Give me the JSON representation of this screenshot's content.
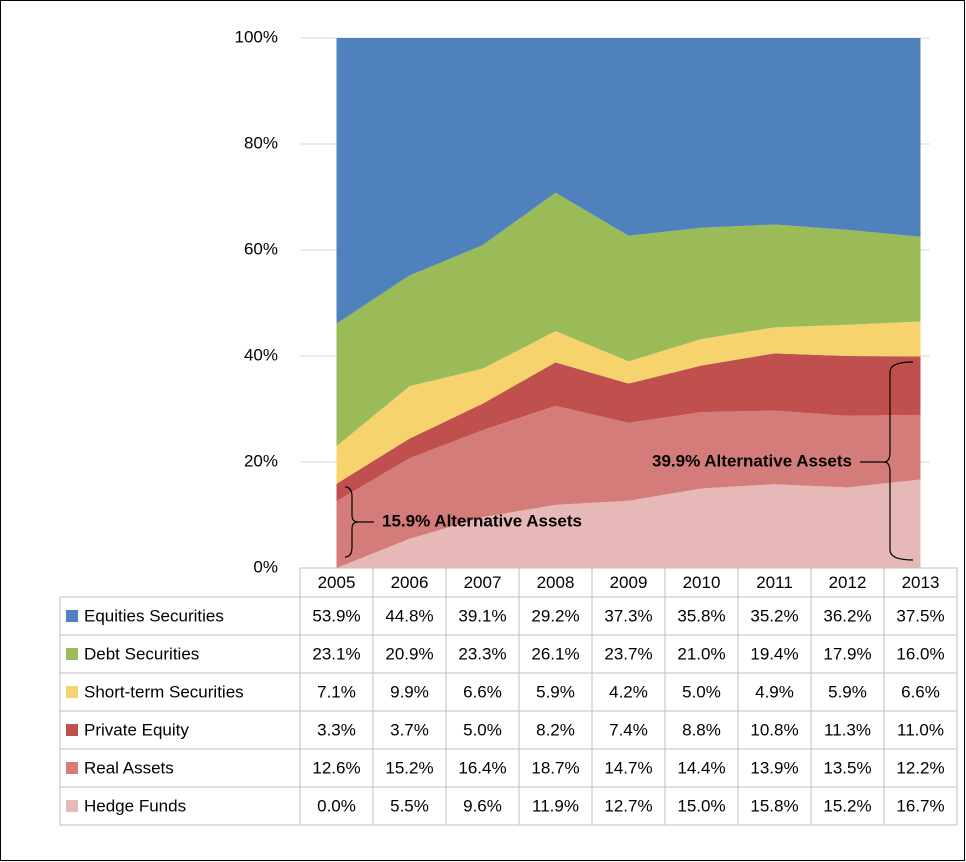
{
  "chart_data": {
    "type": "stacked_area",
    "categories": [
      "2005",
      "2006",
      "2007",
      "2008",
      "2009",
      "2010",
      "2011",
      "2012",
      "2013"
    ],
    "series": [
      {
        "name": "Equities Securities",
        "color": "#4f81bd",
        "values": [
          53.9,
          44.8,
          39.1,
          29.2,
          37.3,
          35.8,
          35.2,
          36.2,
          37.5
        ],
        "value_labels": [
          "53.9%",
          "44.8%",
          "39.1%",
          "29.2%",
          "37.3%",
          "35.8%",
          "35.2%",
          "36.2%",
          "37.5%"
        ]
      },
      {
        "name": "Debt Securities",
        "color": "#9bbb59",
        "values": [
          23.1,
          20.9,
          23.3,
          26.1,
          23.7,
          21.0,
          19.4,
          17.9,
          16.0
        ],
        "value_labels": [
          "23.1%",
          "20.9%",
          "23.3%",
          "26.1%",
          "23.7%",
          "21.0%",
          "19.4%",
          "17.9%",
          "16.0%"
        ]
      },
      {
        "name": "Short-term Securities",
        "color": "#f7d36e",
        "values": [
          7.1,
          9.9,
          6.6,
          5.9,
          4.2,
          5.0,
          4.9,
          5.9,
          6.6
        ],
        "value_labels": [
          "7.1%",
          "9.9%",
          "6.6%",
          "5.9%",
          "4.2%",
          "5.0%",
          "4.9%",
          "5.9%",
          "6.6%"
        ]
      },
      {
        "name": "Private Equity",
        "color": "#c0504d",
        "values": [
          3.3,
          3.7,
          5.0,
          8.2,
          7.4,
          8.8,
          10.8,
          11.3,
          11.0
        ],
        "value_labels": [
          "3.3%",
          "3.7%",
          "5.0%",
          "8.2%",
          "7.4%",
          "8.8%",
          "10.8%",
          "11.3%",
          "11.0%"
        ]
      },
      {
        "name": "Real Assets",
        "color": "#d47c79",
        "values": [
          12.6,
          15.2,
          16.4,
          18.7,
          14.7,
          14.4,
          13.9,
          13.5,
          12.2
        ],
        "value_labels": [
          "12.6%",
          "15.2%",
          "16.4%",
          "18.7%",
          "14.7%",
          "14.4%",
          "13.9%",
          "13.5%",
          "12.2%"
        ]
      },
      {
        "name": "Hedge Funds",
        "color": "#e6b9b8",
        "values": [
          0.0,
          5.5,
          9.6,
          11.9,
          12.7,
          15.0,
          15.8,
          15.2,
          16.7
        ],
        "value_labels": [
          "0.0%",
          "5.5%",
          "9.6%",
          "11.9%",
          "12.7%",
          "15.0%",
          "15.8%",
          "15.2%",
          "16.7%"
        ]
      }
    ],
    "ylim": [
      0,
      100
    ],
    "yticks": [
      {
        "value": 0,
        "label": "0%"
      },
      {
        "value": 20,
        "label": "20%"
      },
      {
        "value": 40,
        "label": "40%"
      },
      {
        "value": 60,
        "label": "60%"
      },
      {
        "value": 80,
        "label": "80%"
      },
      {
        "value": 100,
        "label": "100%"
      }
    ],
    "grid": true,
    "annotations": [
      "15.9% Alternative Assets",
      "39.9% Alternative Assets"
    ]
  }
}
